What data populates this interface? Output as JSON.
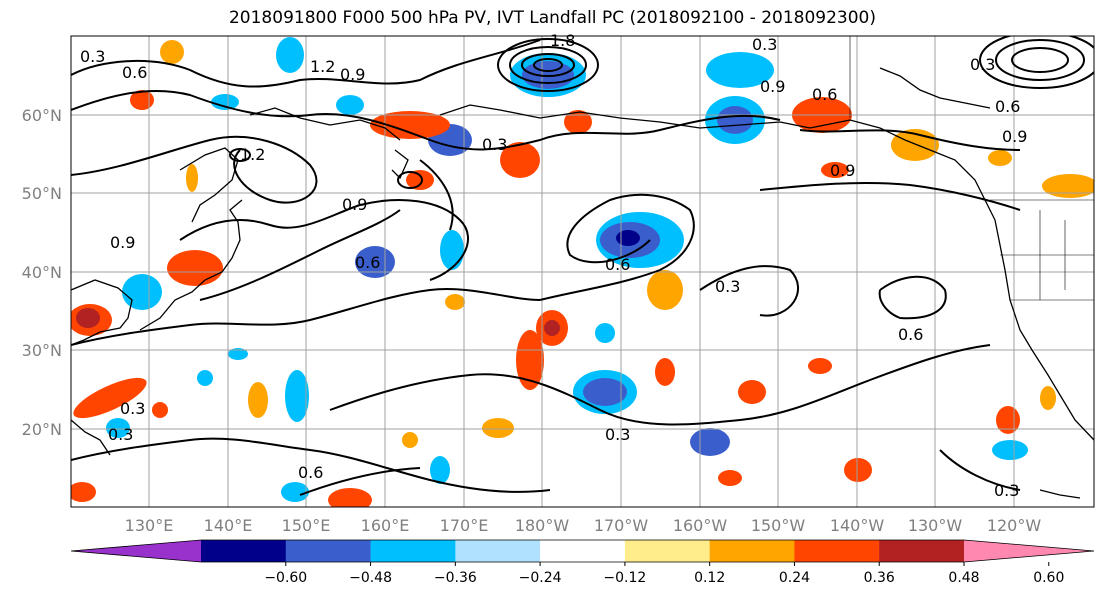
{
  "title": "2018091800 F000 500 hPa PV, IVT Landfall PC (2018092100 - 2018092300)",
  "map": {
    "lat_labels": [
      "60°N",
      "50°N",
      "40°N",
      "30°N",
      "20°N"
    ],
    "lon_labels": [
      "130°E",
      "140°E",
      "150°E",
      "160°E",
      "170°E",
      "180°W",
      "170°W",
      "160°W",
      "150°W",
      "140°W",
      "130°W",
      "120°W"
    ],
    "contour_labels": [
      "0.3",
      "0.6",
      "1.2",
      "0.9",
      "1.2",
      "0.3",
      "0.9",
      "0.6",
      "0.9",
      "0.9",
      "0.6",
      "0.9",
      "0.9",
      "0.6",
      "0.6",
      "0.3",
      "0.3",
      "0.6",
      "0.3",
      "0.3",
      "0.3",
      "0.3",
      "0.3",
      "1.8",
      "0.6"
    ],
    "colors": {
      "land": "#000000",
      "grid": "#a0a0a0",
      "contour": "#000000"
    }
  },
  "colorbar": {
    "ticks": [
      "−0.60",
      "−0.48",
      "−0.36",
      "−0.24",
      "−0.12",
      "0.12",
      "0.24",
      "0.36",
      "0.48",
      "0.60"
    ],
    "colors": [
      "#9932cc",
      "#00008b",
      "#3a5fcd",
      "#00bfff",
      "#b0e2ff",
      "#ffffff",
      "#ffec8b",
      "#ffa500",
      "#ff4500",
      "#b22222",
      "#ff88b0"
    ]
  }
}
